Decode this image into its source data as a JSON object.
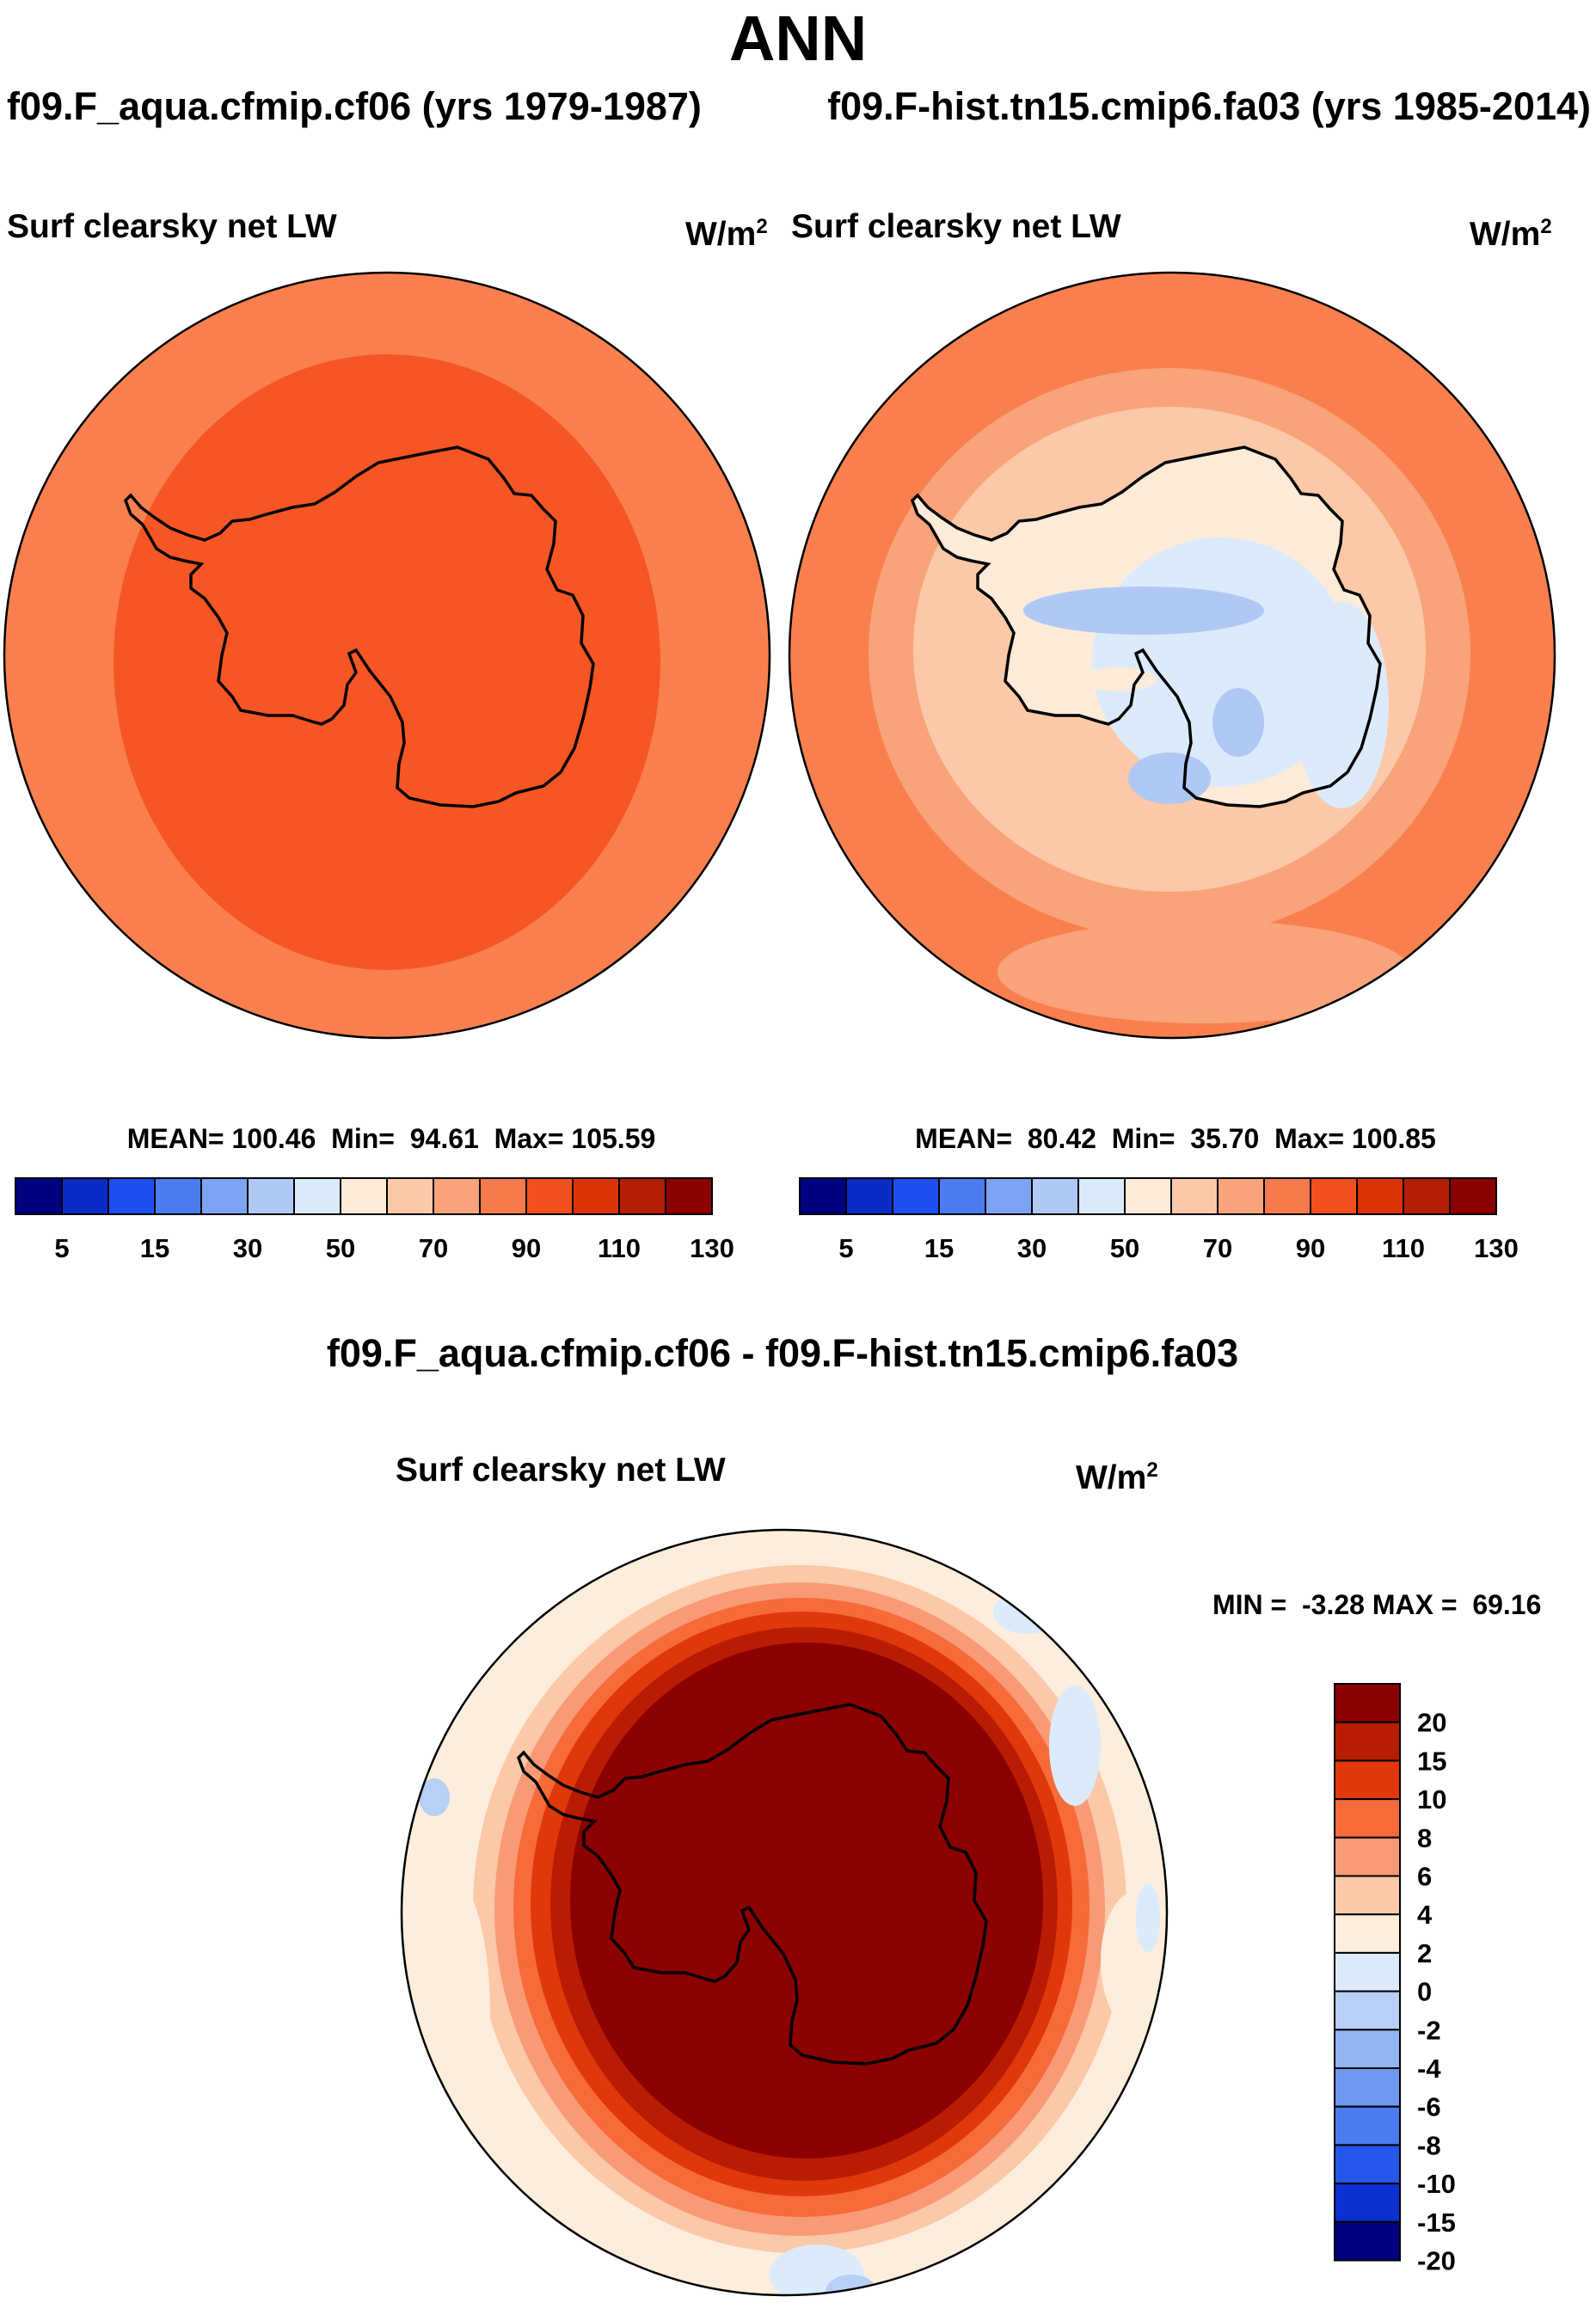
{
  "page": {
    "title": "ANN"
  },
  "panels": [
    {
      "case_title": "f09.F_aqua.cfmip.cf06 (yrs 1979-1987)",
      "variable": "Surf clearsky net LW",
      "units": "W/m",
      "units_exp": "2",
      "stats": "MEAN= 100.46  Min=  94.61  Max= 105.59"
    },
    {
      "case_title": "f09.F-hist.tn15.cmip6.fa03 (yrs 1985-2014)",
      "variable": "Surf clearsky net LW",
      "units": "W/m",
      "units_exp": "2",
      "stats": "MEAN=  80.42  Min=  35.70  Max= 100.85"
    }
  ],
  "diff_panel": {
    "title": "f09.F_aqua.cfmip.cf06 - f09.F-hist.tn15.cmip6.fa03",
    "variable": "Surf clearsky net LW",
    "units": "W/m",
    "units_exp": "2",
    "stats": "MIN =  -3.28 MAX =  69.16"
  },
  "colorbars": {
    "main": {
      "colors": [
        "#000080",
        "#0a2bc4",
        "#1e4ff0",
        "#4a7cf0",
        "#7da4f2",
        "#b0c8f4",
        "#dcebfb",
        "#fdebd9",
        "#fbc9a7",
        "#f9a37b",
        "#f77a4c",
        "#f44f1f",
        "#dc3208",
        "#b41e04",
        "#8b0000"
      ],
      "labels": [
        "5",
        "15",
        "30",
        "50",
        "70",
        "90",
        "110",
        "130"
      ]
    },
    "diff": {
      "colors": [
        "#8b0000",
        "#b81c02",
        "#e0380b",
        "#f76a3a",
        "#f99a76",
        "#fbc8a8",
        "#fdeddc",
        "#dcebfb",
        "#b8cff6",
        "#93b4f3",
        "#6e98f0",
        "#4a7cf0",
        "#2556ea",
        "#0b30cf",
        "#000080"
      ],
      "labels": [
        "20",
        "15",
        "10",
        "8",
        "6",
        "4",
        "2",
        "0",
        "-2",
        "-4",
        "-6",
        "-8",
        "-10",
        "-15",
        "-20"
      ]
    }
  },
  "colors": {
    "ocean_a": "#f9804e",
    "inner_a": "#f65624",
    "ocean_b": "#f9804e",
    "diff_core": "#8b0000"
  }
}
